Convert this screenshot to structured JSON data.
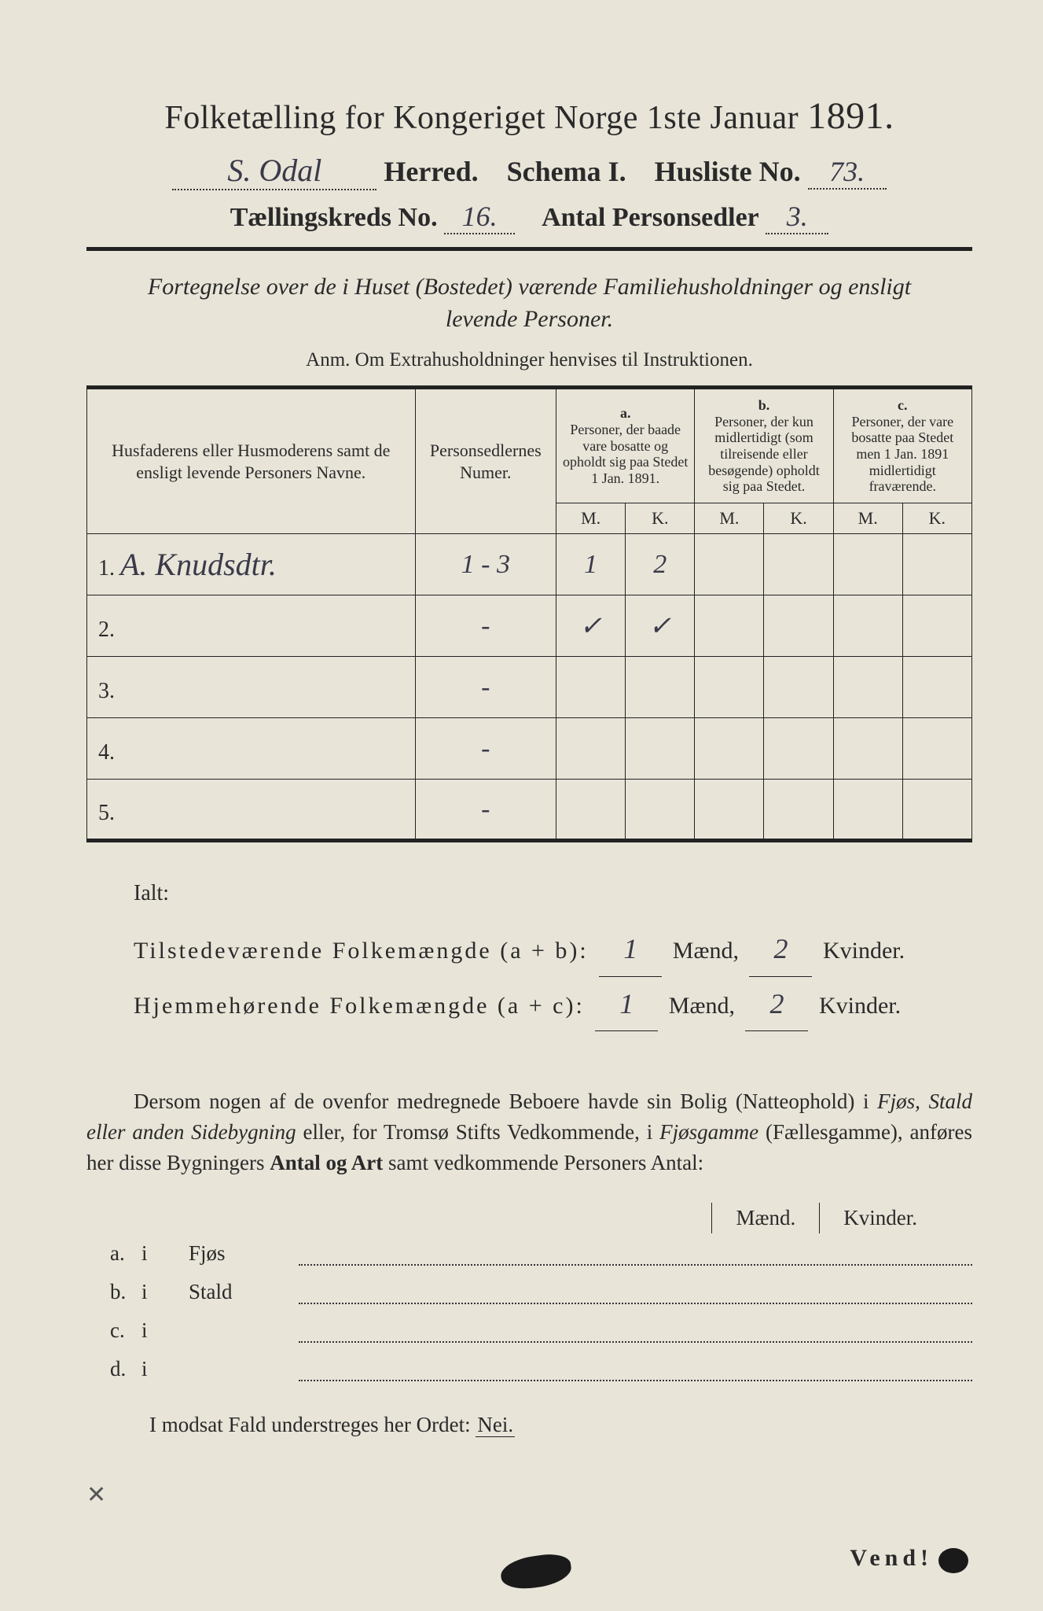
{
  "colors": {
    "paper": "#e8e4d8",
    "ink": "#2a2a2a",
    "rule": "#222222",
    "handwriting": "#3a3a4a"
  },
  "header": {
    "title_pre": "Folketælling for Kongeriget Norge 1ste Januar",
    "year": "1891.",
    "herred_value": "S. Odal",
    "herred_label": "Herred.",
    "schema_label": "Schema I.",
    "husliste_label": "Husliste No.",
    "husliste_value": "73.",
    "kreds_label": "Tællingskreds No.",
    "kreds_value": "16.",
    "antal_label": "Antal Personsedler",
    "antal_value": "3."
  },
  "subtitle": {
    "line1": "Fortegnelse over de i Huset (Bostedet) værende Familiehusholdninger og ensligt",
    "line2": "levende Personer."
  },
  "anm": "Anm.  Om Extrahusholdninger henvises til Instruktionen.",
  "table": {
    "col_name": "Husfaderens eller Husmoderens samt de ensligt levende Personers Navne.",
    "col_num": "Personsedlernes Numer.",
    "col_a_label": "a.",
    "col_a": "Personer, der baade vare bosatte og opholdt sig paa Stedet 1 Jan. 1891.",
    "col_b_label": "b.",
    "col_b": "Personer, der kun midlertidigt (som tilreisende eller besøgende) opholdt sig paa Stedet.",
    "col_c_label": "c.",
    "col_c": "Personer, der vare bosatte paa Stedet men 1 Jan. 1891 midlertidigt fraværende.",
    "M": "M.",
    "K": "K.",
    "rows": [
      {
        "n": "1.",
        "name": "A. Knudsdtr.",
        "num": "1 - 3",
        "aM": "1",
        "aK": "2",
        "bM": "",
        "bK": "",
        "cM": "",
        "cK": ""
      },
      {
        "n": "2.",
        "name": "",
        "num": "-",
        "aM": "✓",
        "aK": "✓",
        "bM": "",
        "bK": "",
        "cM": "",
        "cK": ""
      },
      {
        "n": "3.",
        "name": "",
        "num": "-",
        "aM": "",
        "aK": "",
        "bM": "",
        "bK": "",
        "cM": "",
        "cK": ""
      },
      {
        "n": "4.",
        "name": "",
        "num": "-",
        "aM": "",
        "aK": "",
        "bM": "",
        "bK": "",
        "cM": "",
        "cK": ""
      },
      {
        "n": "5.",
        "name": "",
        "num": "-",
        "aM": "",
        "aK": "",
        "bM": "",
        "bK": "",
        "cM": "",
        "cK": ""
      }
    ]
  },
  "totals": {
    "ialt": "Ialt:",
    "line1_label": "Tilstedeværende Folkemængde (a + b):",
    "line2_label": "Hjemmehørende Folkemængde (a + c):",
    "maend": "Mænd,",
    "kvinder": "Kvinder.",
    "t_m": "1",
    "t_k": "2",
    "h_m": "1",
    "h_k": "2"
  },
  "paragraph": {
    "p1": "Dersom nogen af de ovenfor medregnede Beboere havde sin Bolig (Natteophold) i ",
    "it1": "Fjøs, Stald eller anden Sidebygning",
    "p2": " eller, for Tromsø Stifts Vedkommende, i ",
    "it2": "Fjøsgamme",
    "p3": " (Fællesgamme), anføres her disse Bygningers ",
    "b1": "Antal og Art",
    "p4": " samt vedkommende Personers Antal:"
  },
  "side": {
    "maend": "Mænd.",
    "kvinder": "Kvinder.",
    "rows": [
      {
        "a": "a.",
        "i": "i",
        "name": "Fjøs"
      },
      {
        "a": "b.",
        "i": "i",
        "name": "Stald"
      },
      {
        "a": "c.",
        "i": "i",
        "name": ""
      },
      {
        "a": "d.",
        "i": "i",
        "name": ""
      }
    ]
  },
  "modsat": {
    "text": "I modsat Fald understreges her Ordet: ",
    "nei": "Nei."
  },
  "vend": "Vend!"
}
